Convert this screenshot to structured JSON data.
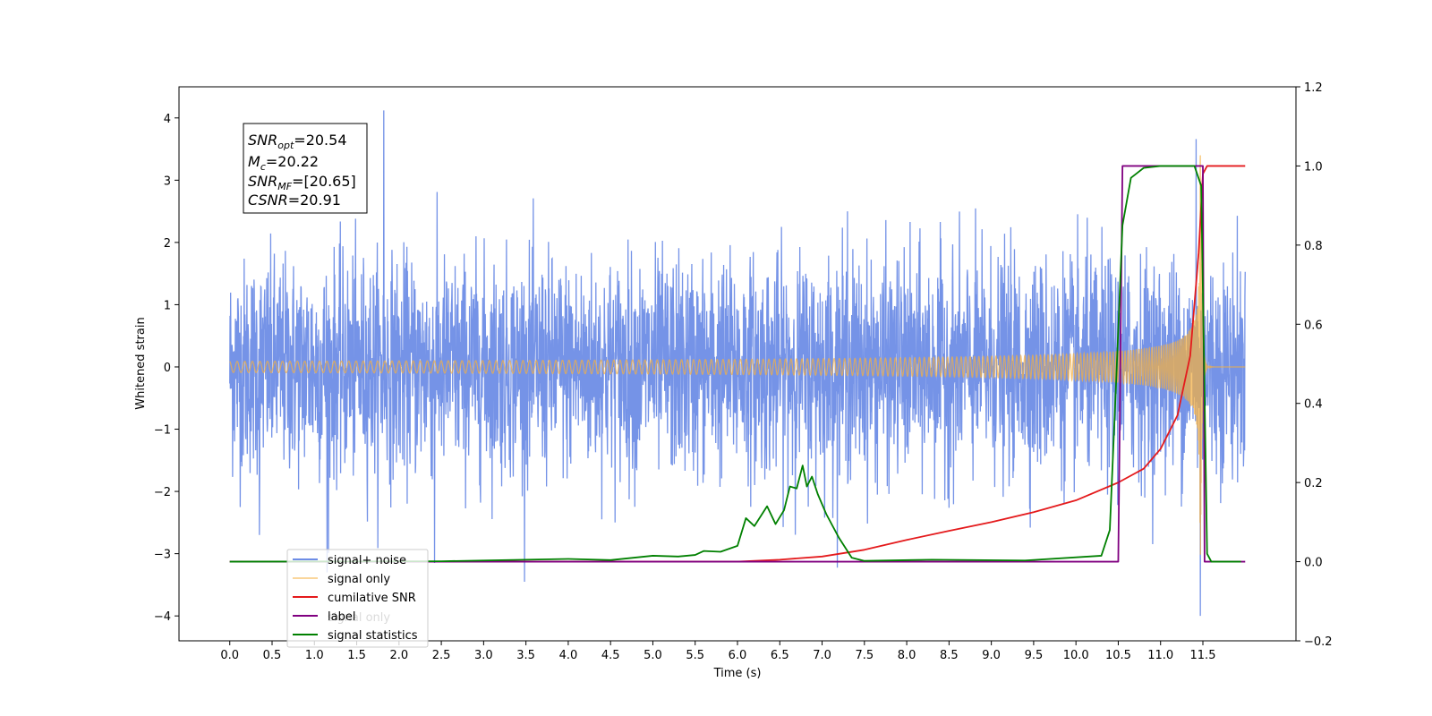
{
  "chart_data": {
    "type": "line",
    "xlabel": "Time (s)",
    "ylabel": "Whitened strain",
    "xlim": [
      -0.6,
      12.6
    ],
    "ylim": [
      -4.4,
      4.5
    ],
    "y2lim": [
      -0.2,
      1.2
    ],
    "xticks": [
      "0.0",
      "0.5",
      "1.0",
      "1.5",
      "2.0",
      "2.5",
      "3.0",
      "3.5",
      "4.0",
      "4.5",
      "5.0",
      "5.5",
      "6.0",
      "6.5",
      "7.0",
      "7.5",
      "8.0",
      "8.5",
      "9.0",
      "9.5",
      "10.0",
      "10.5",
      "11.0",
      "11.5"
    ],
    "yticks": [
      "−4",
      "−3",
      "−2",
      "−1",
      "0",
      "1",
      "2",
      "3",
      "4"
    ],
    "y2ticks": [
      "−0.2",
      "0.0",
      "0.2",
      "0.4",
      "0.6",
      "0.8",
      "1.0",
      "1.2"
    ],
    "annotation": [
      {
        "sym": "SNR",
        "sub": "opt",
        "rest": "=20.54"
      },
      {
        "sym": "M",
        "sub": "c",
        "rest": "=20.22"
      },
      {
        "sym": "SNR",
        "sub": "MF",
        "rest": "=[20.65]"
      },
      {
        "sym": "CSNR",
        "sub": "",
        "rest": "=20.91"
      }
    ],
    "legend": {
      "placement": "lower-left",
      "entries": [
        "signal+ noise",
        "signal only",
        "cumilative SNR",
        "label",
        "signal statistics"
      ]
    },
    "hidden_text": "signal only",
    "series": [
      {
        "name": "signal+ noise",
        "color": "#6e8de6",
        "axis": "left",
        "kind": "noise",
        "x_range": [
          0.0,
          12.0
        ],
        "typical_amplitude": 1.1,
        "peaks": [
          [
            0.35,
            -2.7
          ],
          [
            1.15,
            -3.3
          ],
          [
            1.82,
            4.12
          ],
          [
            2.42,
            -3.15
          ],
          [
            7.3,
            2.5
          ],
          [
            11.42,
            3.66
          ],
          [
            11.47,
            -4.0
          ]
        ]
      },
      {
        "name": "signal only",
        "color": "#f5b041",
        "axis": "left",
        "kind": "chirp",
        "x_range": [
          0.0,
          12.0
        ],
        "merger_time": 11.47,
        "peak_amplitude": 3.4
      },
      {
        "name": "cumilative SNR",
        "color": "#e41a1c",
        "axis": "right",
        "x": [
          0.0,
          5.0,
          6.0,
          6.5,
          7.0,
          7.5,
          8.0,
          8.5,
          9.0,
          9.5,
          10.0,
          10.5,
          10.8,
          11.0,
          11.2,
          11.35,
          11.45,
          11.5,
          11.55,
          12.0
        ],
        "y": [
          0.0,
          0.0,
          0.0,
          0.005,
          0.013,
          0.03,
          0.055,
          0.078,
          0.1,
          0.125,
          0.155,
          0.2,
          0.235,
          0.285,
          0.37,
          0.52,
          0.78,
          0.98,
          1.0,
          1.0
        ]
      },
      {
        "name": "label",
        "color": "#800080",
        "axis": "right",
        "x": [
          0.0,
          10.5,
          10.55,
          11.5,
          11.52,
          12.0
        ],
        "y": [
          0.0,
          0.0,
          1.0,
          1.0,
          0.0,
          0.0
        ]
      },
      {
        "name": "signal statistics",
        "color": "#008000",
        "axis": "right",
        "x": [
          0.0,
          2.5,
          3.0,
          3.5,
          4.0,
          4.5,
          5.0,
          5.3,
          5.5,
          5.6,
          5.8,
          6.0,
          6.1,
          6.2,
          6.35,
          6.45,
          6.55,
          6.62,
          6.7,
          6.77,
          6.82,
          6.88,
          6.95,
          7.05,
          7.2,
          7.35,
          7.5,
          8.3,
          9.4,
          10.3,
          10.4,
          10.48,
          10.55,
          10.65,
          10.8,
          11.0,
          11.4,
          11.48,
          11.55,
          11.6,
          11.95
        ],
        "y": [
          0.0,
          0.001,
          0.003,
          0.005,
          0.007,
          0.004,
          0.015,
          0.013,
          0.017,
          0.027,
          0.025,
          0.04,
          0.11,
          0.09,
          0.14,
          0.095,
          0.13,
          0.19,
          0.185,
          0.243,
          0.19,
          0.215,
          0.17,
          0.12,
          0.06,
          0.01,
          0.002,
          0.005,
          0.003,
          0.015,
          0.08,
          0.48,
          0.85,
          0.97,
          0.995,
          1.0,
          1.0,
          0.95,
          0.02,
          0.0,
          0.0
        ]
      }
    ]
  }
}
